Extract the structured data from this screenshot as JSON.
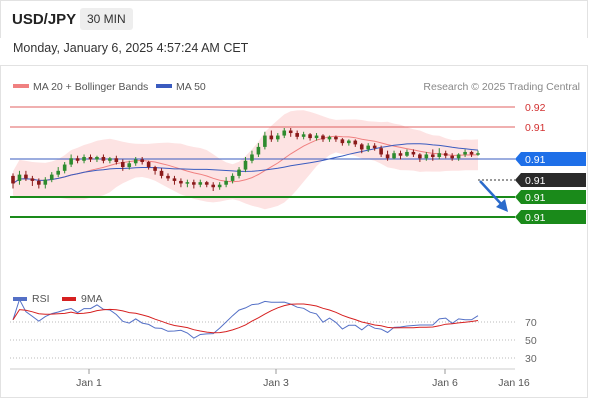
{
  "header": {
    "symbol": "USD/JPY",
    "interval": "30 MIN"
  },
  "timestamp": "Monday, January 6, 2025 4:57:24 AM CET",
  "colors": {
    "bollinger": "#f08080",
    "bollinger_fill": "#fde3e3",
    "ma50": "#3a5bbf",
    "resistance": "#e06060",
    "support": "#1a8a1a",
    "rsi": "#5470c6",
    "rsi_ma": "#d62020",
    "candle_up": "#2e8b2e",
    "candle_down": "#8b1a1a",
    "arrow": "#2a6acb",
    "price_tag": "#2a2a2a",
    "ma50_tag": "#1e6fe8"
  },
  "legend": {
    "bollinger_label": "MA 20 + Bollinger Bands",
    "ma50_label": "MA 50",
    "credit": "Research © 2025 Trading Central"
  },
  "rsi_legend": {
    "rsi_label": "RSI",
    "ma_label": "9MA"
  },
  "price_tags": {
    "r2": "0.92",
    "r1": "0.91",
    "ma50": "0.91",
    "last": "0.91",
    "s1": "0.91",
    "s2": "0.91"
  },
  "rsi_ticks": [
    "70",
    "50",
    "30"
  ],
  "x_ticks": [
    "Jan 1",
    "Jan 3",
    "Jan 6",
    "Jan 16"
  ],
  "chart_data": {
    "type": "candlestick",
    "x_label_positions": {
      "Jan 1": 0.18,
      "Jan 3": 0.51,
      "Jan 6": 0.87,
      "Jan 16": 1.0
    },
    "y_range": [
      0,
      1
    ],
    "candles_normalized": [
      [
        0.62,
        0.56,
        0.52,
        0.64
      ],
      [
        0.58,
        0.63,
        0.55,
        0.66
      ],
      [
        0.63,
        0.6,
        0.58,
        0.66
      ],
      [
        0.6,
        0.58,
        0.54,
        0.62
      ],
      [
        0.58,
        0.55,
        0.52,
        0.6
      ],
      [
        0.55,
        0.59,
        0.52,
        0.61
      ],
      [
        0.59,
        0.63,
        0.57,
        0.65
      ],
      [
        0.63,
        0.66,
        0.61,
        0.69
      ],
      [
        0.66,
        0.71,
        0.64,
        0.73
      ],
      [
        0.71,
        0.76,
        0.69,
        0.79
      ],
      [
        0.76,
        0.74,
        0.72,
        0.78
      ],
      [
        0.74,
        0.77,
        0.72,
        0.79
      ],
      [
        0.77,
        0.75,
        0.73,
        0.79
      ],
      [
        0.75,
        0.77,
        0.73,
        0.78
      ],
      [
        0.77,
        0.74,
        0.72,
        0.79
      ],
      [
        0.74,
        0.76,
        0.72,
        0.77
      ],
      [
        0.76,
        0.73,
        0.71,
        0.78
      ],
      [
        0.73,
        0.69,
        0.66,
        0.75
      ],
      [
        0.69,
        0.72,
        0.67,
        0.74
      ],
      [
        0.72,
        0.75,
        0.7,
        0.77
      ],
      [
        0.75,
        0.73,
        0.71,
        0.77
      ],
      [
        0.73,
        0.69,
        0.67,
        0.74
      ],
      [
        0.69,
        0.66,
        0.63,
        0.7
      ],
      [
        0.66,
        0.62,
        0.6,
        0.68
      ],
      [
        0.62,
        0.6,
        0.58,
        0.64
      ],
      [
        0.6,
        0.58,
        0.55,
        0.62
      ],
      [
        0.58,
        0.56,
        0.53,
        0.6
      ],
      [
        0.56,
        0.57,
        0.53,
        0.59
      ],
      [
        0.57,
        0.55,
        0.52,
        0.59
      ],
      [
        0.55,
        0.57,
        0.53,
        0.59
      ],
      [
        0.57,
        0.55,
        0.53,
        0.58
      ],
      [
        0.55,
        0.53,
        0.5,
        0.57
      ],
      [
        0.53,
        0.55,
        0.51,
        0.57
      ],
      [
        0.55,
        0.58,
        0.53,
        0.61
      ],
      [
        0.58,
        0.62,
        0.56,
        0.64
      ],
      [
        0.62,
        0.67,
        0.6,
        0.69
      ],
      [
        0.67,
        0.74,
        0.65,
        0.77
      ],
      [
        0.74,
        0.79,
        0.72,
        0.82
      ],
      [
        0.79,
        0.85,
        0.77,
        0.88
      ],
      [
        0.85,
        0.94,
        0.83,
        0.97
      ],
      [
        0.94,
        0.91,
        0.89,
        0.98
      ],
      [
        0.91,
        0.94,
        0.89,
        0.96
      ],
      [
        0.94,
        0.98,
        0.92,
        1.0
      ],
      [
        0.98,
        0.96,
        0.93,
        1.0
      ],
      [
        0.96,
        0.93,
        0.91,
        0.98
      ],
      [
        0.93,
        0.95,
        0.91,
        0.97
      ],
      [
        0.95,
        0.92,
        0.9,
        0.96
      ],
      [
        0.92,
        0.94,
        0.9,
        0.96
      ],
      [
        0.94,
        0.91,
        0.89,
        0.95
      ],
      [
        0.91,
        0.93,
        0.89,
        0.94
      ],
      [
        0.93,
        0.91,
        0.89,
        0.94
      ],
      [
        0.91,
        0.88,
        0.86,
        0.92
      ],
      [
        0.88,
        0.9,
        0.86,
        0.91
      ],
      [
        0.9,
        0.87,
        0.85,
        0.91
      ],
      [
        0.87,
        0.83,
        0.8,
        0.88
      ],
      [
        0.83,
        0.86,
        0.81,
        0.88
      ],
      [
        0.86,
        0.84,
        0.82,
        0.88
      ],
      [
        0.84,
        0.79,
        0.77,
        0.86
      ],
      [
        0.79,
        0.76,
        0.74,
        0.82
      ],
      [
        0.76,
        0.8,
        0.75,
        0.82
      ],
      [
        0.8,
        0.78,
        0.75,
        0.82
      ],
      [
        0.78,
        0.81,
        0.77,
        0.83
      ],
      [
        0.81,
        0.79,
        0.77,
        0.83
      ],
      [
        0.79,
        0.76,
        0.73,
        0.8
      ],
      [
        0.76,
        0.79,
        0.74,
        0.81
      ],
      [
        0.79,
        0.77,
        0.74,
        0.83
      ],
      [
        0.77,
        0.8,
        0.75,
        0.84
      ],
      [
        0.8,
        0.78,
        0.76,
        0.82
      ],
      [
        0.78,
        0.76,
        0.74,
        0.8
      ],
      [
        0.76,
        0.79,
        0.74,
        0.8
      ],
      [
        0.79,
        0.81,
        0.77,
        0.83
      ],
      [
        0.81,
        0.79,
        0.77,
        0.82
      ],
      [
        0.79,
        0.8,
        0.78,
        0.82
      ]
    ]
  }
}
